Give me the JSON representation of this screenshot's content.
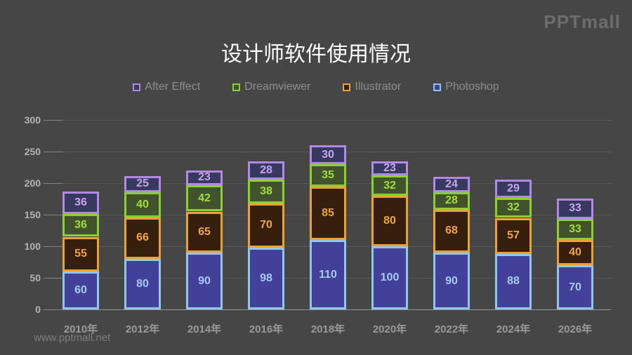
{
  "header": {
    "logo": "PPTmall"
  },
  "footer": {
    "watermark": "www.pptmall.net"
  },
  "chart_data": {
    "type": "bar",
    "stacked": true,
    "title": "设计师软件使用情况",
    "categories": [
      "2010年",
      "2012年",
      "2014年",
      "2016年",
      "2018年",
      "2020年",
      "2022年",
      "2024年",
      "2026年"
    ],
    "series": [
      {
        "name": "Photoshop",
        "values": [
          60,
          80,
          90,
          98,
          110,
          100,
          90,
          88,
          70
        ],
        "fill": "#43409a",
        "border": "#92c4ec",
        "label_color": "#a6ccf2"
      },
      {
        "name": "Illustrator",
        "values": [
          55,
          66,
          65,
          70,
          85,
          80,
          68,
          57,
          40
        ],
        "fill": "#371f0d",
        "border": "#eaa236",
        "label_color": "#f0a63c"
      },
      {
        "name": "Dreamviewer",
        "values": [
          36,
          40,
          42,
          38,
          35,
          32,
          28,
          32,
          33
        ],
        "fill": "#41522c",
        "border": "#8ccf33",
        "label_color": "#a0e03c"
      },
      {
        "name": "After Effect",
        "values": [
          36,
          25,
          23,
          28,
          30,
          23,
          24,
          29,
          33
        ],
        "fill": "#37395e",
        "border": "#b18ae4",
        "label_color": "#c7a5f1"
      }
    ],
    "legend": {
      "position": "top",
      "order": [
        "After Effect",
        "Dreamviewer",
        "Illustrator",
        "Photoshop"
      ]
    },
    "y_axis": {
      "min": 0,
      "max": 300,
      "step": 50,
      "ticks": [
        "0",
        "50",
        "100",
        "150",
        "200",
        "250",
        "300"
      ]
    },
    "grid": true
  }
}
